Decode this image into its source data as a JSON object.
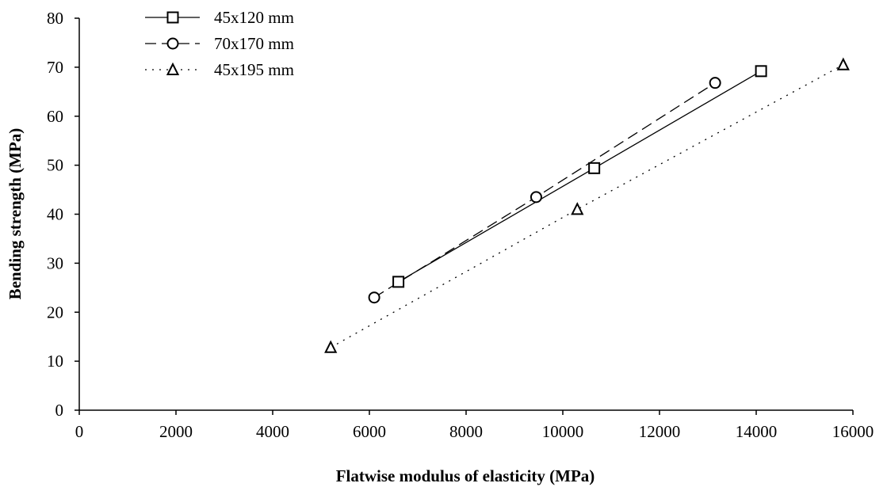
{
  "chart_data": {
    "type": "scatter",
    "title": "",
    "xlabel": "Flatwise modulus of elasticity (MPa)",
    "ylabel": "Bending strength (MPa)",
    "xlim": [
      0,
      16000
    ],
    "ylim": [
      0,
      80
    ],
    "x_ticks": [
      0,
      2000,
      4000,
      6000,
      8000,
      10000,
      12000,
      14000,
      16000
    ],
    "y_ticks": [
      0,
      10,
      20,
      30,
      40,
      50,
      60,
      70,
      80
    ],
    "grid": false,
    "legend_position": "top-left",
    "series": [
      {
        "name": "45x120 mm",
        "marker": "square",
        "line": "solid",
        "color": "#000000",
        "points": [
          [
            6600,
            26.2
          ],
          [
            10650,
            49.4
          ],
          [
            14100,
            69.2
          ]
        ]
      },
      {
        "name": "70x170 mm",
        "marker": "circle",
        "line": "dashed",
        "color": "#000000",
        "points": [
          [
            6100,
            23.0
          ],
          [
            9450,
            43.5
          ],
          [
            13150,
            66.8
          ]
        ]
      },
      {
        "name": "45x195 mm",
        "marker": "triangle",
        "line": "dotted",
        "color": "#000000",
        "points": [
          [
            5200,
            12.8
          ],
          [
            10300,
            41.0
          ],
          [
            15800,
            70.5
          ]
        ]
      }
    ]
  }
}
